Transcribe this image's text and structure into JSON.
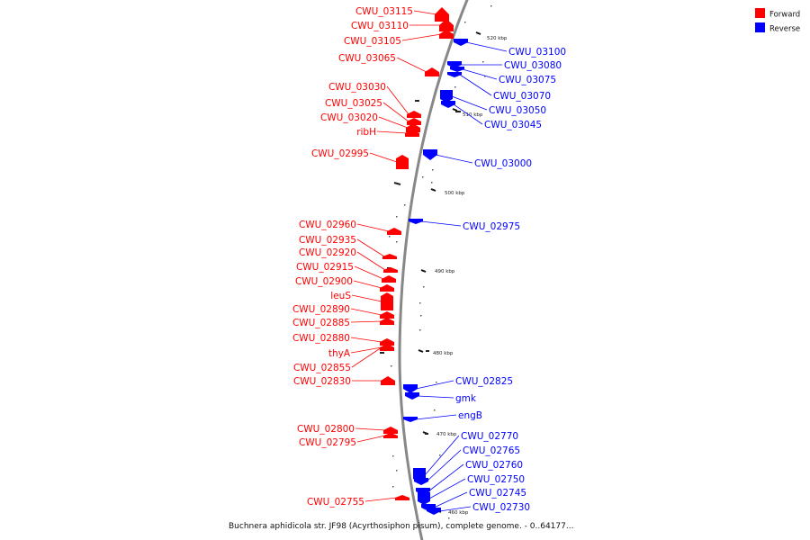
{
  "legend": {
    "forward_label": "Forward",
    "reverse_label": "Reverse",
    "forward_color": "#ff0000",
    "reverse_color": "#0000ff"
  },
  "caption": "Buchnera aphidicola str. JF98 (Acyrthosiphon pisum), complete genome. - 0..64177...",
  "backbone_color": "#888888",
  "ticks": [
    "520 kbp",
    "510 kbp",
    "500 kbp",
    "490 kbp",
    "480 kbp",
    "470 kbp",
    "460 kbp"
  ],
  "forward_genes": [
    "CWU_03115",
    "CWU_03110",
    "CWU_03105",
    "CWU_03065",
    "CWU_03030",
    "CWU_03025",
    "CWU_03020",
    "ribH",
    "CWU_02995",
    "CWU_02960",
    "CWU_02935",
    "CWU_02920",
    "CWU_02915",
    "CWU_02900",
    "leuS",
    "CWU_02890",
    "CWU_02885",
    "CWU_02880",
    "thyA",
    "CWU_02855",
    "CWU_02830",
    "CWU_02800",
    "CWU_02795",
    "CWU_02755"
  ],
  "reverse_genes": [
    "CWU_03100",
    "CWU_03080",
    "CWU_03075",
    "CWU_03070",
    "CWU_03050",
    "CWU_03045",
    "CWU_03000",
    "CWU_02975",
    "CWU_02825",
    "gmk",
    "engB",
    "CWU_02770",
    "CWU_02765",
    "CWU_02760",
    "CWU_02750",
    "CWU_02745",
    "CWU_02730"
  ]
}
